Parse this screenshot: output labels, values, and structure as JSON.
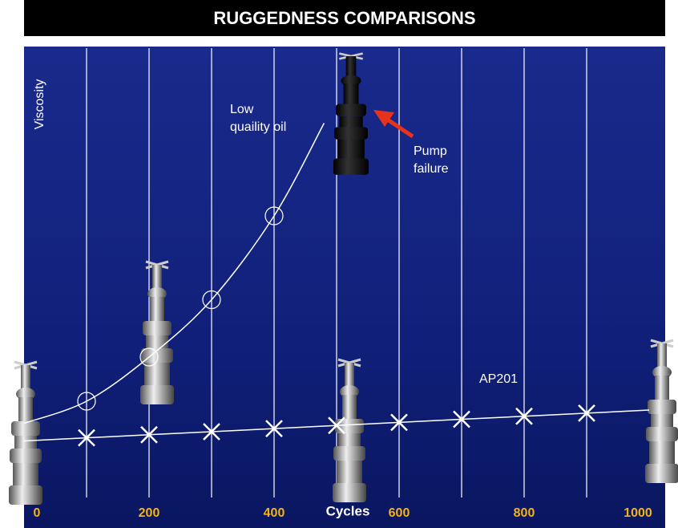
{
  "chart_data": {
    "type": "line",
    "title": "RUGGEDNESS COMPARISONS",
    "xlabel": "Cycles",
    "ylabel": "Viscosity",
    "xlim": [
      0,
      1000
    ],
    "xticks": [
      0,
      200,
      400,
      600,
      800,
      1000
    ],
    "ylim": [
      0,
      100
    ],
    "grid": true,
    "series": [
      {
        "name": "Low quaility oil",
        "color": "#ffffff",
        "marker": "circle",
        "x": [
          0,
          100,
          200,
          300,
          400,
          480
        ],
        "values": [
          15,
          20,
          30,
          43,
          62,
          83
        ]
      },
      {
        "name": "AP201",
        "color": "#ffffff",
        "marker": "cross",
        "x": [
          0,
          100,
          200,
          300,
          400,
          500,
          600,
          700,
          800,
          900,
          1000
        ],
        "values": [
          11,
          11.7,
          12.4,
          13.1,
          13.8,
          14.5,
          15.2,
          15.9,
          16.6,
          17.3,
          18
        ]
      }
    ],
    "annotation": "Pump failure"
  }
}
